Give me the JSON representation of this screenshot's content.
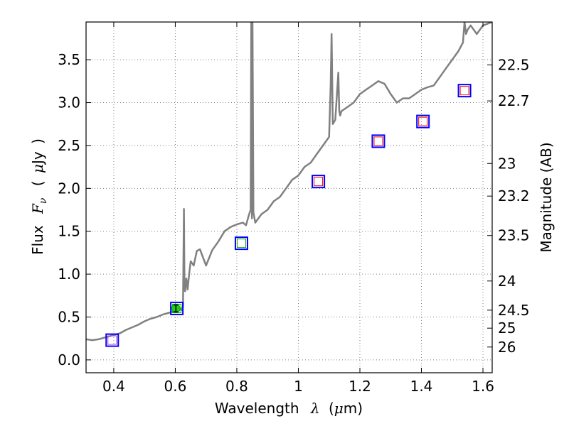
{
  "chart_data": {
    "type": "scatter",
    "title": "",
    "xlabel": {
      "text": "Wavelength",
      "symbol": "λ",
      "unit_open": "(",
      "unit_mu": "μ",
      "unit_rest": "m)"
    },
    "ylabel": {
      "text": "Flux",
      "symbol": "F",
      "symbol_sub": "ν",
      "unit_open": "(",
      "unit_mu": "μ",
      "unit_rest": "Jy",
      "unit_close": ")"
    },
    "y2label": "Magnitude (AB)",
    "xlim": [
      0.31,
      1.63
    ],
    "ylim": [
      -0.15,
      3.94
    ],
    "grid": true,
    "grid_style": "dotted",
    "x_ticks": [
      {
        "value": 0.4,
        "label": "0.4"
      },
      {
        "value": 0.6,
        "label": "0.6"
      },
      {
        "value": 0.8,
        "label": "0.8"
      },
      {
        "value": 1.0,
        "label": "1"
      },
      {
        "value": 1.2,
        "label": "1.2"
      },
      {
        "value": 1.4,
        "label": "1.4"
      },
      {
        "value": 1.6,
        "label": "1.6"
      }
    ],
    "y_ticks": [
      {
        "value": 0.0,
        "label": "0.0"
      },
      {
        "value": 0.5,
        "label": "0.5"
      },
      {
        "value": 1.0,
        "label": "1.0"
      },
      {
        "value": 1.5,
        "label": "1.5"
      },
      {
        "value": 2.0,
        "label": "2.0"
      },
      {
        "value": 2.5,
        "label": "2.5"
      },
      {
        "value": 3.0,
        "label": "3.0"
      },
      {
        "value": 3.5,
        "label": "3.5"
      }
    ],
    "y2_ticks": [
      {
        "flux": 3.44,
        "label": "22.5"
      },
      {
        "flux": 3.02,
        "label": "22.7"
      },
      {
        "flux": 2.29,
        "label": "23"
      },
      {
        "flux": 1.91,
        "label": "23.2"
      },
      {
        "flux": 1.45,
        "label": "23.5"
      },
      {
        "flux": 0.92,
        "label": "24"
      },
      {
        "flux": 0.58,
        "label": "24.5"
      },
      {
        "flux": 0.37,
        "label": "25"
      },
      {
        "flux": 0.15,
        "label": "26"
      }
    ],
    "colors": {
      "spectrum": "#808080",
      "marker_outer": "#0000ff",
      "marker_red": "#ff0000",
      "marker_green": "#00aa00",
      "marker_magenta": "#cc44cc",
      "measured_fill": "#22cc22",
      "axis": "#000000",
      "grid": "#808080"
    },
    "series": [
      {
        "name": "model_spectrum",
        "kind": "line",
        "x": [
          0.31,
          0.33,
          0.35,
          0.37,
          0.39,
          0.4,
          0.42,
          0.44,
          0.46,
          0.48,
          0.5,
          0.52,
          0.54,
          0.56,
          0.58,
          0.6,
          0.61,
          0.62,
          0.625,
          0.628,
          0.63,
          0.632,
          0.636,
          0.64,
          0.645,
          0.65,
          0.66,
          0.67,
          0.68,
          0.7,
          0.72,
          0.74,
          0.76,
          0.78,
          0.8,
          0.82,
          0.83,
          0.84,
          0.845,
          0.847,
          0.849,
          0.851,
          0.854,
          0.86,
          0.88,
          0.9,
          0.92,
          0.94,
          0.96,
          0.98,
          1.0,
          1.02,
          1.04,
          1.06,
          1.08,
          1.09,
          1.1,
          1.105,
          1.108,
          1.112,
          1.12,
          1.13,
          1.133,
          1.136,
          1.14,
          1.16,
          1.18,
          1.2,
          1.22,
          1.24,
          1.26,
          1.28,
          1.3,
          1.32,
          1.34,
          1.36,
          1.38,
          1.4,
          1.42,
          1.44,
          1.46,
          1.48,
          1.5,
          1.52,
          1.535,
          1.54,
          1.545,
          1.55,
          1.56,
          1.58,
          1.6,
          1.63
        ],
        "y": [
          0.24,
          0.23,
          0.24,
          0.26,
          0.28,
          0.29,
          0.31,
          0.35,
          0.38,
          0.41,
          0.45,
          0.48,
          0.5,
          0.53,
          0.55,
          0.57,
          0.6,
          0.58,
          0.62,
          1.76,
          0.85,
          0.8,
          0.95,
          0.82,
          1.0,
          1.15,
          1.1,
          1.27,
          1.29,
          1.1,
          1.28,
          1.38,
          1.5,
          1.55,
          1.58,
          1.6,
          1.57,
          1.7,
          1.75,
          3.94,
          1.65,
          3.94,
          1.72,
          1.6,
          1.7,
          1.75,
          1.85,
          1.9,
          2.0,
          2.1,
          2.15,
          2.25,
          2.3,
          2.4,
          2.5,
          2.55,
          2.6,
          3.2,
          3.8,
          2.75,
          2.8,
          3.35,
          2.9,
          2.85,
          2.9,
          2.95,
          3.0,
          3.1,
          3.15,
          3.2,
          3.25,
          3.22,
          3.1,
          3.0,
          3.05,
          3.05,
          3.1,
          3.15,
          3.18,
          3.2,
          3.3,
          3.4,
          3.5,
          3.6,
          3.7,
          3.94,
          3.8,
          3.85,
          3.9,
          3.8,
          3.9,
          3.94
        ]
      },
      {
        "name": "synthetic_photometry",
        "kind": "markers",
        "points": [
          {
            "x": 0.395,
            "y": 0.23,
            "inner": "magenta"
          },
          {
            "x": 0.605,
            "y": 0.6,
            "inner": "green"
          },
          {
            "x": 0.815,
            "y": 1.36,
            "inner": "green"
          },
          {
            "x": 1.065,
            "y": 2.08,
            "inner": "red"
          },
          {
            "x": 1.26,
            "y": 2.55,
            "inner": "red"
          },
          {
            "x": 1.405,
            "y": 2.78,
            "inner": "red"
          },
          {
            "x": 1.54,
            "y": 3.14,
            "inner": "red"
          }
        ]
      },
      {
        "name": "observed_flux",
        "kind": "errorbar",
        "points": [
          {
            "x": 0.602,
            "y": 0.6,
            "yerr": 0.04
          }
        ]
      }
    ]
  }
}
